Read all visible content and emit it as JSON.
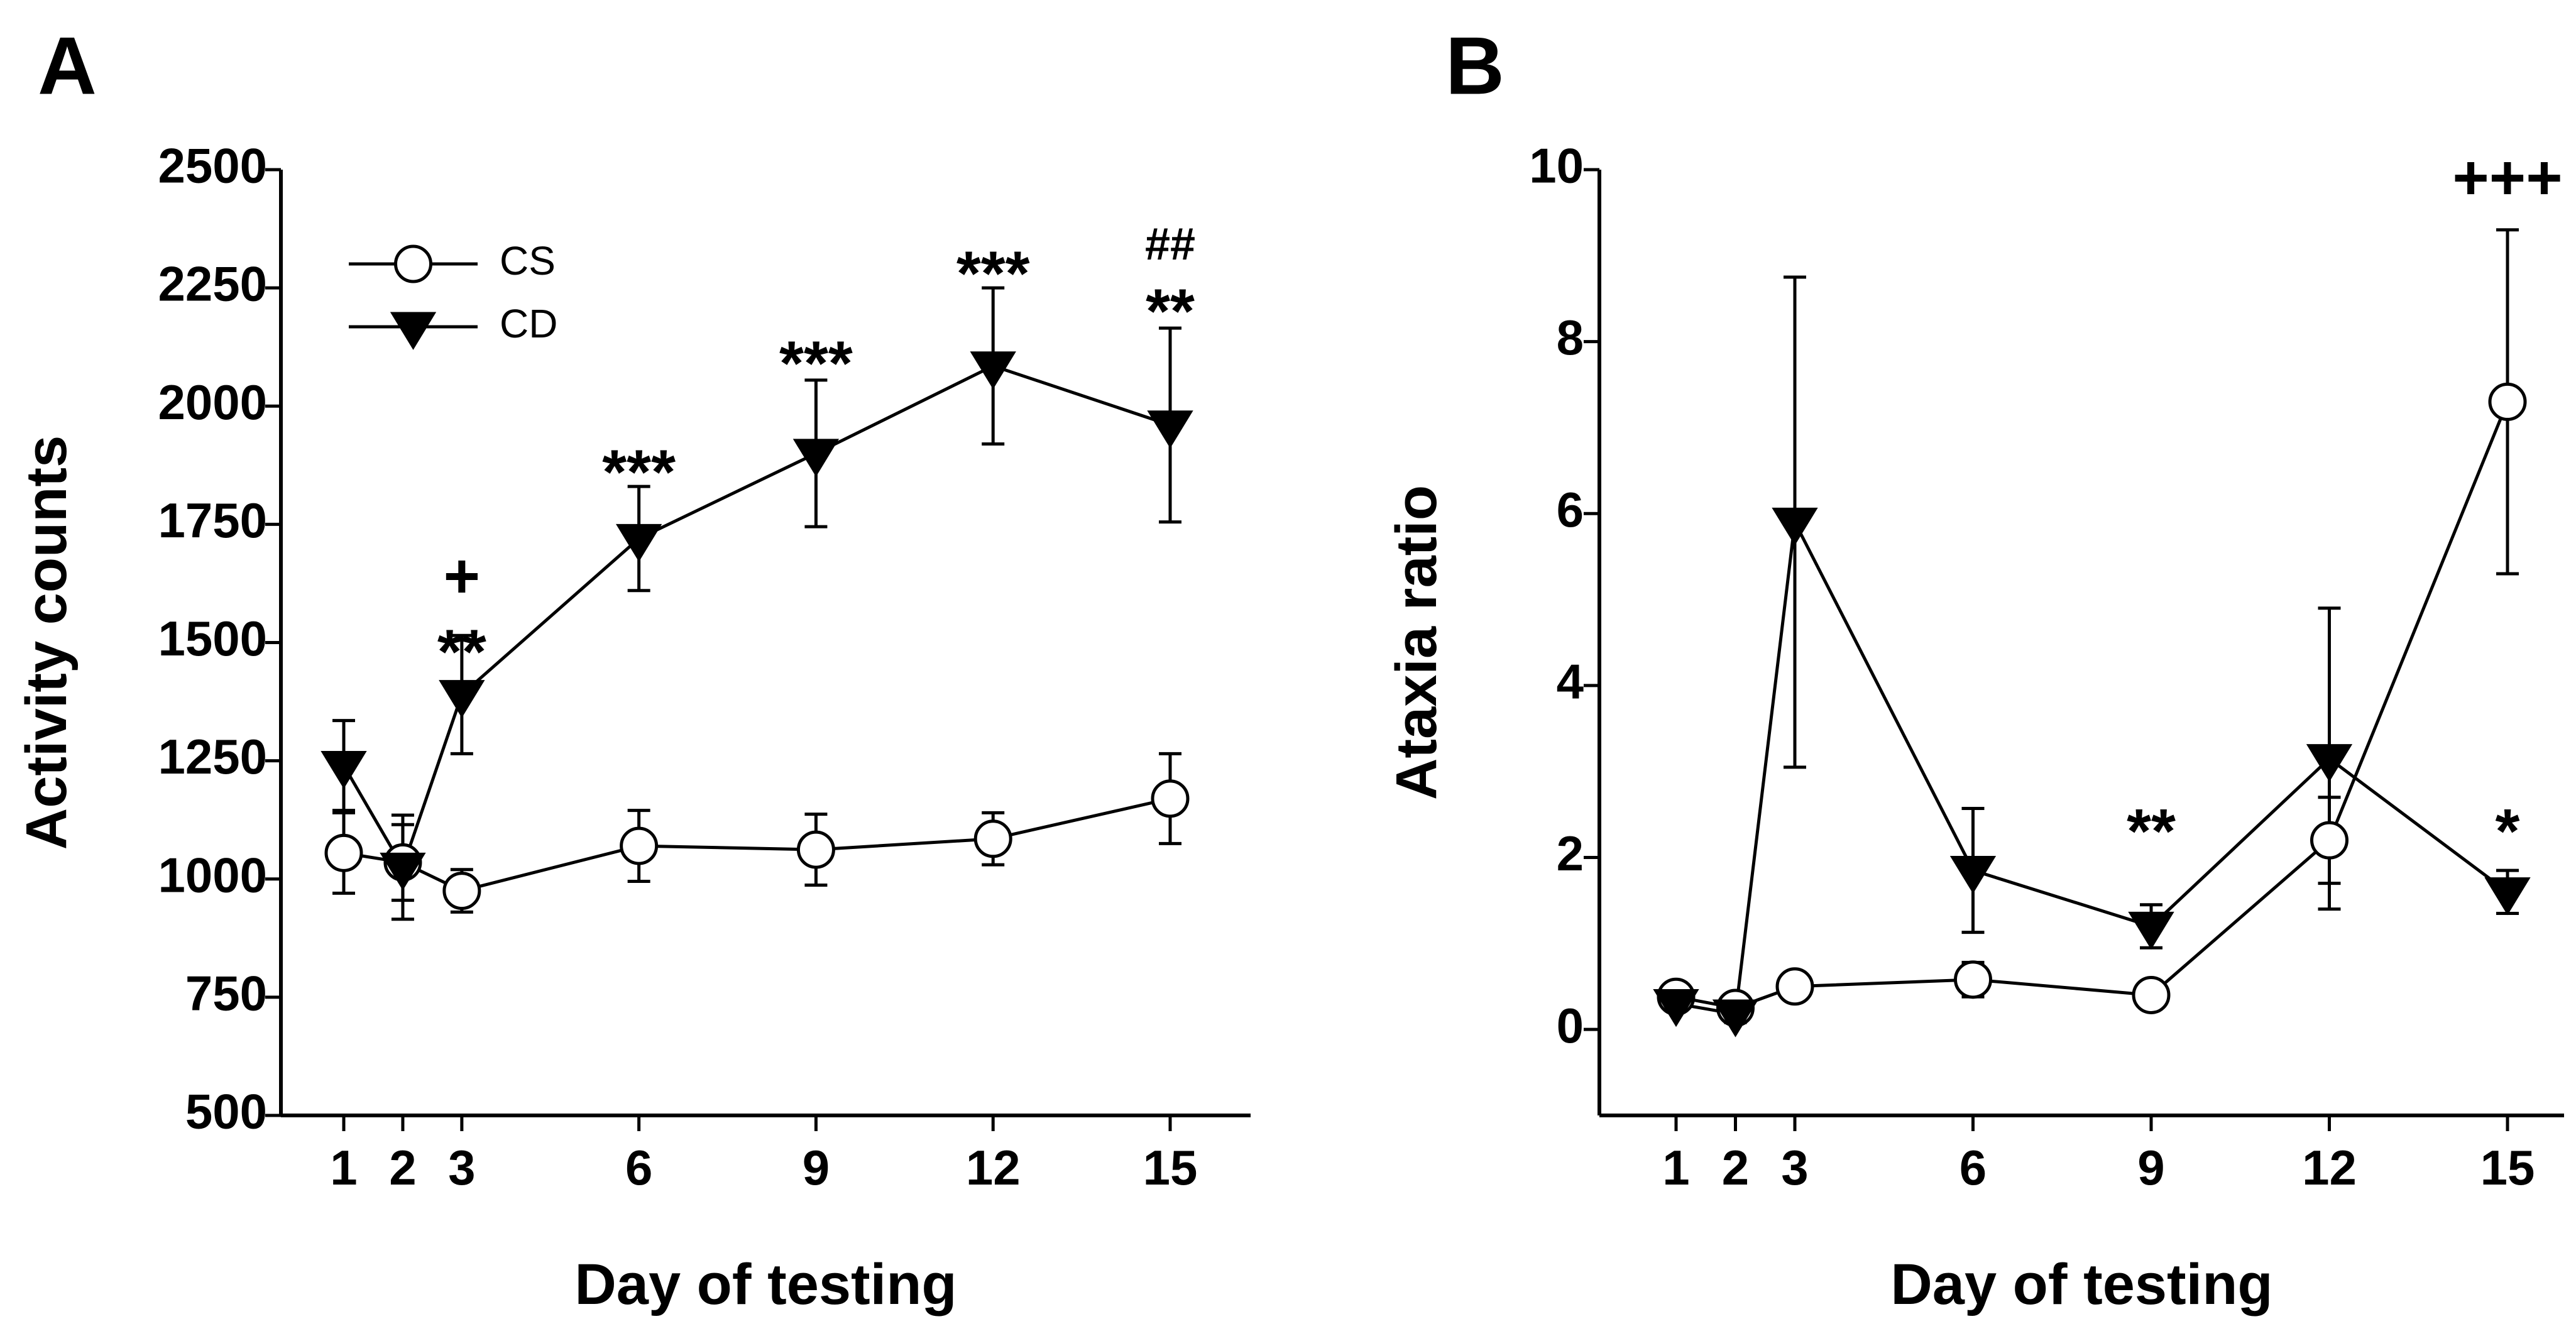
{
  "chart_data": [
    {
      "panel": "A",
      "type": "line",
      "xlabel": "Day of testing",
      "ylabel": "Activity counts",
      "ylim": [
        500,
        2500
      ],
      "x_ticks": [
        1,
        2,
        3,
        6,
        9,
        12,
        15
      ],
      "y_ticks": [
        500,
        750,
        1000,
        1250,
        1500,
        1750,
        2000,
        2250,
        2500
      ],
      "legend": [
        "CS",
        "CD"
      ],
      "legend_position": "top-left",
      "series": [
        {
          "name": "CS",
          "marker": "open-circle",
          "x": [
            1,
            2,
            3,
            6,
            9,
            12,
            15
          ],
          "y": [
            1055,
            1035,
            975,
            1070,
            1062,
            1085,
            1170
          ],
          "error": [
            85,
            80,
            45,
            75,
            75,
            55,
            95
          ]
        },
        {
          "name": "CD",
          "marker": "filled-triangle-down",
          "x": [
            1,
            2,
            3,
            6,
            9,
            12,
            15
          ],
          "y": [
            1240,
            1025,
            1390,
            1720,
            1900,
            2085,
            1960
          ],
          "error": [
            95,
            110,
            125,
            110,
            155,
            165,
            205
          ]
        }
      ],
      "annotations": [
        {
          "x": 3,
          "y": 1470,
          "text": "**",
          "size": "large"
        },
        {
          "x": 3,
          "y": 1630,
          "text": "+",
          "size": "large"
        },
        {
          "x": 6,
          "y": 1850,
          "text": "***",
          "size": "large"
        },
        {
          "x": 9,
          "y": 2080,
          "text": "***",
          "size": "large"
        },
        {
          "x": 12,
          "y": 2270,
          "text": "***",
          "size": "large"
        },
        {
          "x": 15,
          "y": 2190,
          "text": "**",
          "size": "large"
        },
        {
          "x": 15,
          "y": 2335,
          "text": "##",
          "size": "small"
        }
      ]
    },
    {
      "panel": "B",
      "type": "line",
      "xlabel": "Day of testing",
      "ylabel": "Ataxia ratio",
      "ylim": [
        -1,
        10
      ],
      "x_ticks": [
        1,
        2,
        3,
        6,
        9,
        12,
        15
      ],
      "y_ticks": [
        0,
        2,
        4,
        6,
        8,
        10
      ],
      "series": [
        {
          "name": "CS",
          "marker": "open-circle",
          "x": [
            1,
            2,
            3,
            6,
            9,
            12,
            15
          ],
          "y": [
            0.38,
            0.25,
            0.5,
            0.58,
            0.4,
            2.2,
            7.3
          ],
          "error": [
            0.1,
            0.08,
            0.1,
            0.2,
            0.1,
            0.5,
            2.0
          ]
        },
        {
          "name": "CD",
          "marker": "filled-triangle-down",
          "x": [
            1,
            2,
            3,
            6,
            9,
            12,
            15
          ],
          "y": [
            0.3,
            0.18,
            5.9,
            1.85,
            1.2,
            3.15,
            1.6
          ],
          "error": [
            0.08,
            0.1,
            2.85,
            0.72,
            0.25,
            1.75,
            0.25
          ]
        }
      ],
      "annotations": [
        {
          "x": 9,
          "y": 2.25,
          "text": "**",
          "size": "large"
        },
        {
          "x": 15,
          "y": 2.25,
          "text": "*",
          "size": "large"
        },
        {
          "x": 15,
          "y": 9.85,
          "text": "+++",
          "size": "large"
        }
      ]
    }
  ]
}
